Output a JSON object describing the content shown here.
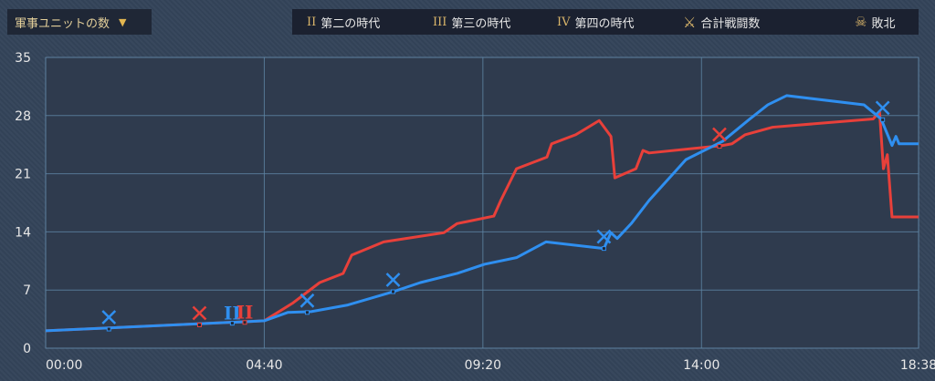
{
  "dropdown": {
    "label": "軍事ユニットの数",
    "icon": "chevron-down-icon"
  },
  "legend": [
    {
      "icon": "II",
      "label": "第二の時代"
    },
    {
      "icon": "III",
      "label": "第三の時代"
    },
    {
      "icon": "IV",
      "label": "第四の時代"
    },
    {
      "icon": "crossed-swords-icon",
      "label": "合計戦闘数"
    },
    {
      "icon": "skull-icon",
      "label": "敗北"
    }
  ],
  "chart_data": {
    "type": "line",
    "ylim": [
      0,
      35
    ],
    "yticks": [
      "0",
      "7",
      "14",
      "21",
      "28",
      "35"
    ],
    "xlim": [
      "00:00",
      "18:38"
    ],
    "xticks": [
      "00:00",
      "04:40",
      "09:20",
      "14:00",
      "18:38"
    ],
    "grid": true,
    "series": [
      {
        "color": "#e8403a",
        "points": [
          [
            "00:00",
            2.1
          ],
          [
            "04:18",
            3.2
          ],
          [
            "04:40",
            3.3
          ],
          [
            "05:16",
            5.4
          ],
          [
            "05:51",
            7.9
          ],
          [
            "06:21",
            9.0
          ],
          [
            "06:32",
            11.2
          ],
          [
            "07:13",
            12.8
          ],
          [
            "08:30",
            13.9
          ],
          [
            "08:47",
            15.0
          ],
          [
            "09:34",
            15.9
          ],
          [
            "09:43",
            17.8
          ],
          [
            "10:03",
            21.6
          ],
          [
            "10:42",
            23.0
          ],
          [
            "10:48",
            24.6
          ],
          [
            "11:19",
            25.7
          ],
          [
            "11:49",
            27.4
          ],
          [
            "12:04",
            25.5
          ],
          [
            "12:09",
            20.5
          ],
          [
            "12:36",
            21.6
          ],
          [
            "12:45",
            23.8
          ],
          [
            "12:53",
            23.5
          ],
          [
            "14:27",
            24.4
          ],
          [
            "14:39",
            24.6
          ],
          [
            "14:56",
            25.7
          ],
          [
            "15:31",
            26.6
          ],
          [
            "17:40",
            27.6
          ],
          [
            "17:48",
            28.5
          ],
          [
            "17:53",
            21.6
          ],
          [
            "17:58",
            23.3
          ],
          [
            "18:04",
            15.8
          ],
          [
            "18:38",
            15.8
          ]
        ]
      },
      {
        "color": "#2f8ff0",
        "points": [
          [
            "00:00",
            2.1
          ],
          [
            "04:18",
            3.2
          ],
          [
            "04:40",
            3.3
          ],
          [
            "05:10",
            4.3
          ],
          [
            "05:40",
            4.4
          ],
          [
            "06:27",
            5.2
          ],
          [
            "07:25",
            6.8
          ],
          [
            "08:00",
            7.9
          ],
          [
            "08:47",
            9.0
          ],
          [
            "09:22",
            10.1
          ],
          [
            "10:03",
            10.9
          ],
          [
            "10:41",
            12.8
          ],
          [
            "11:55",
            12.0
          ],
          [
            "12:04",
            13.9
          ],
          [
            "12:12",
            13.2
          ],
          [
            "12:30",
            15.0
          ],
          [
            "12:53",
            17.8
          ],
          [
            "13:40",
            22.7
          ],
          [
            "14:27",
            24.9
          ],
          [
            "15:02",
            27.6
          ],
          [
            "15:25",
            29.3
          ],
          [
            "15:49",
            30.4
          ],
          [
            "17:28",
            29.3
          ],
          [
            "17:50",
            27.6
          ],
          [
            "18:04",
            24.4
          ],
          [
            "18:09",
            25.5
          ],
          [
            "18:13",
            24.6
          ],
          [
            "18:38",
            24.6
          ]
        ]
      }
    ],
    "markers": [
      {
        "series": 1,
        "type": "battle",
        "time": "01:21",
        "value": 2.3
      },
      {
        "series": 0,
        "type": "battle",
        "time": "03:17",
        "value": 2.8
      },
      {
        "series": 1,
        "type": "age",
        "label": "II",
        "time": "03:59",
        "value": 3.0
      },
      {
        "series": 0,
        "type": "age",
        "label": "II",
        "time": "04:15",
        "value": 3.1
      },
      {
        "series": 1,
        "type": "battle",
        "time": "05:35",
        "value": 4.3
      },
      {
        "series": 1,
        "type": "battle",
        "time": "07:25",
        "value": 6.8
      },
      {
        "series": 1,
        "type": "battle",
        "time": "11:55",
        "value": 12.0
      },
      {
        "series": 0,
        "type": "battle",
        "time": "14:23",
        "value": 24.3
      },
      {
        "series": 1,
        "type": "battle",
        "time": "17:52",
        "value": 27.5
      }
    ]
  }
}
